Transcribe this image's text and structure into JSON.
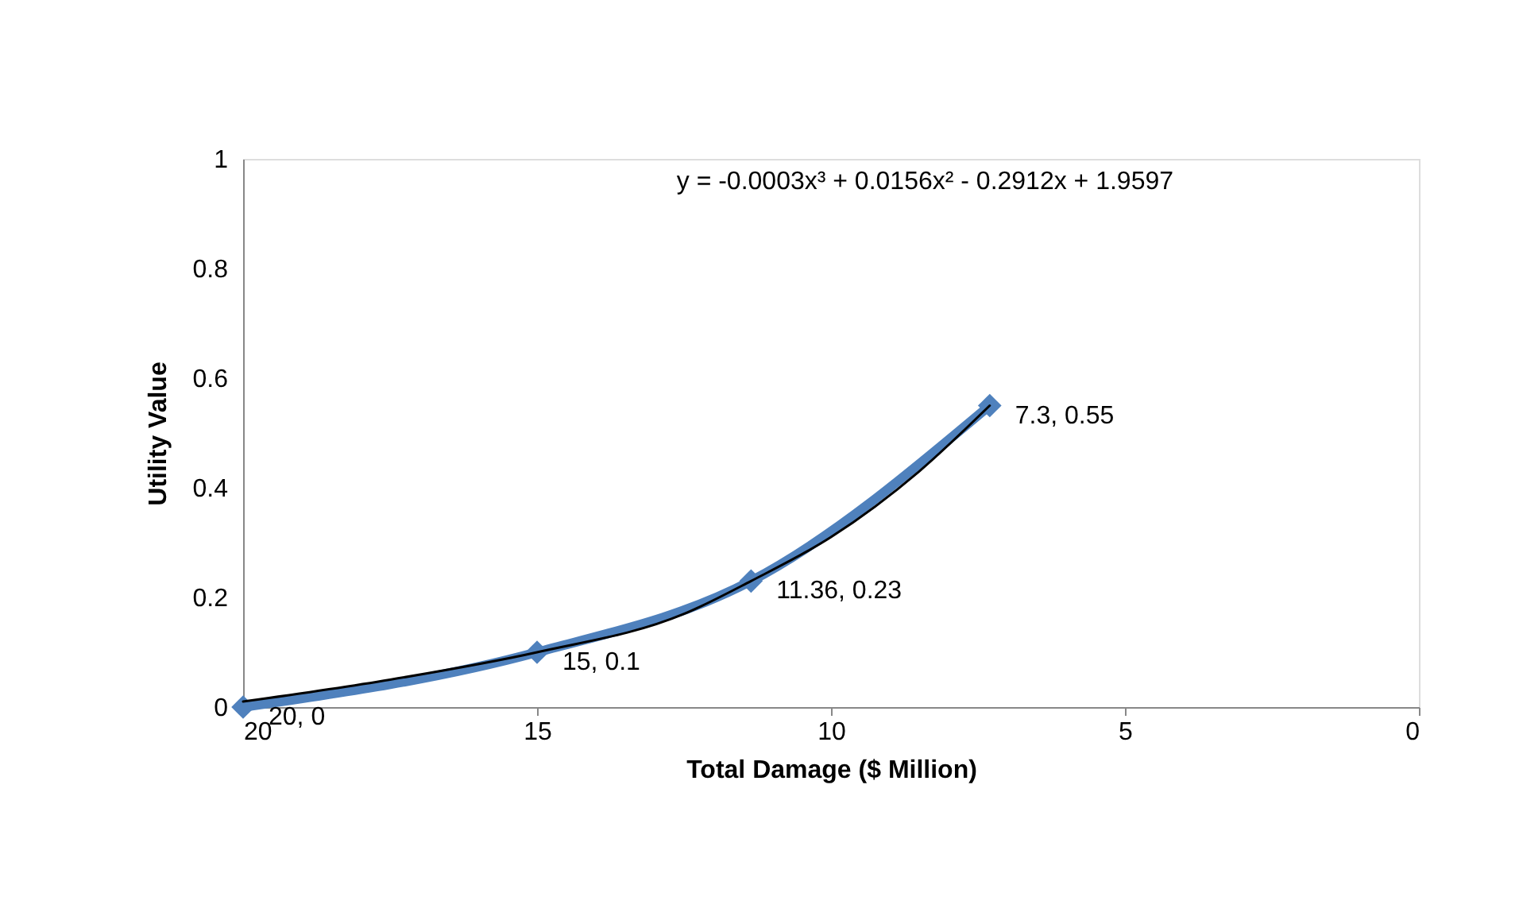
{
  "chart_data": {
    "type": "line",
    "xlabel": "Total Damage ($ Million)",
    "ylabel": "Utility Value",
    "annotations": [
      "y = -0.0003x³ + 0.0156x² - 0.2912x + 1.9597"
    ],
    "xlim": [
      20,
      0
    ],
    "xticks": [
      20,
      15,
      10,
      5,
      0
    ],
    "ylim": [
      0,
      1
    ],
    "yticks": [
      {
        "value": 0,
        "label": "0"
      },
      0.2,
      0.4,
      0.6,
      0.8,
      {
        "value": 1,
        "label": "1"
      }
    ],
    "grid": false,
    "series": [
      {
        "color": "#4f81bd",
        "marker": "diamond",
        "x": [
          20,
          15,
          11.36,
          7.3
        ],
        "values": [
          0,
          0.1,
          0.23,
          0.55
        ],
        "value_labels": [
          "20, 0",
          "15, 0.1",
          "11.36, 0.23",
          "7.3, 0.55"
        ]
      },
      {
        "color": "#000000",
        "marker": "none",
        "x": [
          20,
          17.5,
          15,
          12.5,
          11.36,
          10,
          8.5,
          7.3
        ],
        "values": [
          0.01,
          0.05,
          0.1,
          0.17,
          0.23,
          0.31,
          0.43,
          0.55
        ]
      }
    ]
  }
}
